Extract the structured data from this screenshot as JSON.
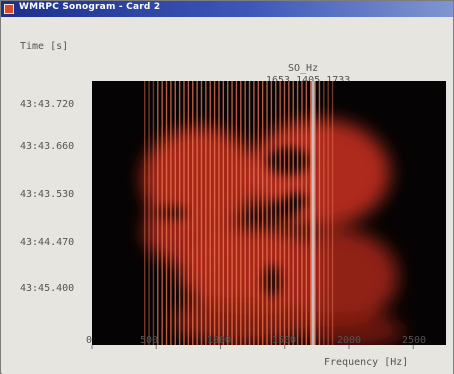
{
  "window": {
    "title": "WMRPC Sonogram - Card 2"
  },
  "sonogram": {
    "y_axis_title": "Time [s]",
    "x_axis_title": "Frequency [Hz]",
    "cursor_label": "SO_Hz",
    "cursor_value": "1653 1405 1733",
    "y_ticks": [
      "43:43.720",
      "43:43.660",
      "43:43.530",
      "43:44.470",
      "43:45.400"
    ],
    "x_ticks": [
      "0",
      "500",
      "1000",
      "1500",
      "2000",
      "2500"
    ],
    "x_range": [
      0,
      2700
    ],
    "colors": {
      "background": "#050303",
      "signal": "#c8301e",
      "line": "#f07a5a",
      "cursor": "#d8d8d8"
    }
  }
}
